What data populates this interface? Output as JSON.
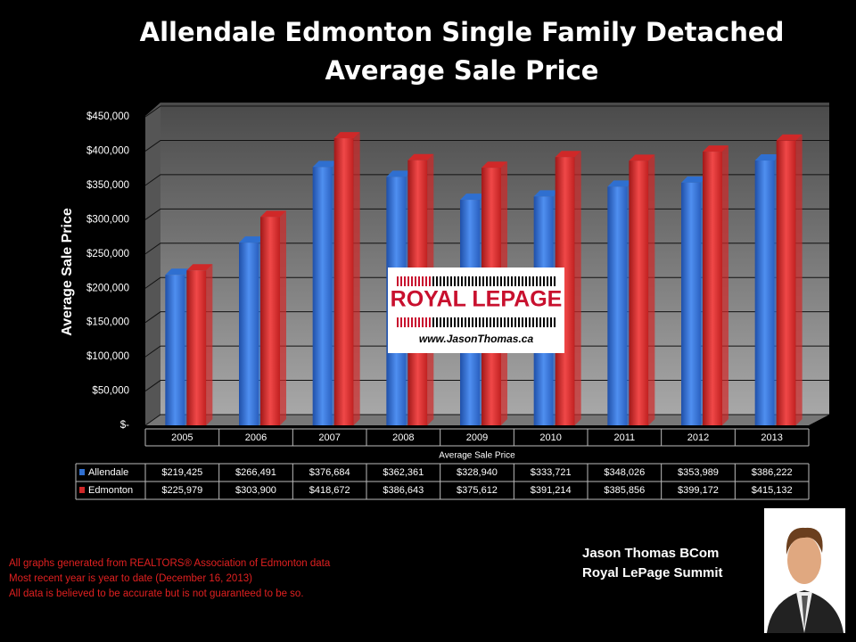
{
  "chart_data": {
    "type": "bar",
    "title": [
      "Allendale Edmonton Single Family Detached",
      "Average Sale Price"
    ],
    "y_label": "Average Sale Price",
    "x_label": "Average Sale Price",
    "categories": [
      "2005",
      "2006",
      "2007",
      "2008",
      "2009",
      "2010",
      "2011",
      "2012",
      "2013"
    ],
    "series": [
      {
        "name": "Allendale",
        "color": "#2f6fd0",
        "values": [
          219425,
          266491,
          376684,
          362361,
          328940,
          333721,
          348026,
          353989,
          386222
        ],
        "value_labels": [
          "$219,425",
          "$266,491",
          "$376,684",
          "$362,361",
          "$328,940",
          "$333,721",
          "$348,026",
          "$353,989",
          "$386,222"
        ]
      },
      {
        "name": "Edmonton",
        "color": "#d02828",
        "values": [
          225979,
          303900,
          418672,
          386643,
          375612,
          391214,
          385856,
          399172,
          415132
        ],
        "value_labels": [
          "$225,979",
          "$303,900",
          "$418,672",
          "$386,643",
          "$375,612",
          "$391,214",
          "$385,856",
          "$399,172",
          "$415,132"
        ]
      }
    ],
    "ylim": [
      0,
      450000
    ],
    "yticks": [
      {
        "value": 0,
        "label": "$-"
      },
      {
        "value": 50000,
        "label": "$50,000"
      },
      {
        "value": 100000,
        "label": "$100,000"
      },
      {
        "value": 150000,
        "label": "$150,000"
      },
      {
        "value": 200000,
        "label": "$200,000"
      },
      {
        "value": 250000,
        "label": "$250,000"
      },
      {
        "value": 300000,
        "label": "$300,000"
      },
      {
        "value": 350000,
        "label": "$350,000"
      },
      {
        "value": 400000,
        "label": "$400,000"
      },
      {
        "value": 450000,
        "label": "$450,000"
      }
    ],
    "grid": true
  },
  "logo": {
    "brand": "ROYAL LEPAGE",
    "url": "www.JasonThomas.ca"
  },
  "footnotes": [
    "All graphs generated from REALTORS® Association of Edmonton data",
    "Most recent year is year to date (December 16, 2013)",
    "All data is believed to be accurate but is not guaranteed to be so."
  ],
  "signature": [
    "Jason Thomas BCom",
    "Royal LePage Summit"
  ]
}
